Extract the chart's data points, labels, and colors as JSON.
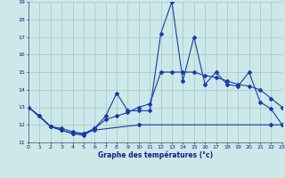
{
  "background_color": "#cce8e8",
  "grid_color": "#aacccc",
  "line_color": "#1a3aab",
  "marker": "D",
  "marker_size": 2.0,
  "xlabel": "Graphe des températures (°c)",
  "ylim": [
    11,
    19
  ],
  "xlim": [
    0,
    23
  ],
  "yticks": [
    11,
    12,
    13,
    14,
    15,
    16,
    17,
    18,
    19
  ],
  "xticks": [
    0,
    1,
    2,
    3,
    4,
    5,
    6,
    7,
    8,
    9,
    10,
    11,
    12,
    13,
    14,
    15,
    16,
    17,
    18,
    19,
    20,
    21,
    22,
    23
  ],
  "series": [
    {
      "x": [
        0,
        1,
        2,
        3,
        4,
        5,
        6,
        7,
        8,
        9,
        10,
        11,
        12,
        13,
        14,
        15,
        16,
        17,
        18,
        19,
        20,
        21,
        22,
        23
      ],
      "y": [
        13.0,
        12.5,
        11.9,
        11.7,
        11.5,
        11.4,
        11.8,
        12.5,
        13.8,
        12.8,
        12.8,
        12.8,
        17.2,
        19.0,
        14.5,
        17.0,
        14.3,
        15.0,
        14.3,
        14.2,
        15.0,
        13.3,
        12.9,
        12.0
      ]
    },
    {
      "x": [
        0,
        1,
        2,
        3,
        4,
        5,
        6,
        7,
        8,
        9,
        10,
        11,
        12,
        13,
        14,
        15,
        16,
        17,
        18,
        19,
        20,
        21,
        22,
        23
      ],
      "y": [
        13.0,
        12.5,
        11.9,
        11.8,
        11.6,
        11.5,
        11.8,
        12.3,
        12.5,
        12.7,
        13.0,
        13.2,
        15.0,
        15.0,
        15.0,
        15.0,
        14.8,
        14.7,
        14.5,
        14.3,
        14.2,
        14.0,
        13.5,
        13.0
      ]
    },
    {
      "x": [
        0,
        2,
        3,
        4,
        5,
        6,
        10,
        22,
        23
      ],
      "y": [
        13.0,
        11.9,
        11.7,
        11.5,
        11.5,
        11.7,
        12.0,
        12.0,
        12.0
      ]
    }
  ]
}
